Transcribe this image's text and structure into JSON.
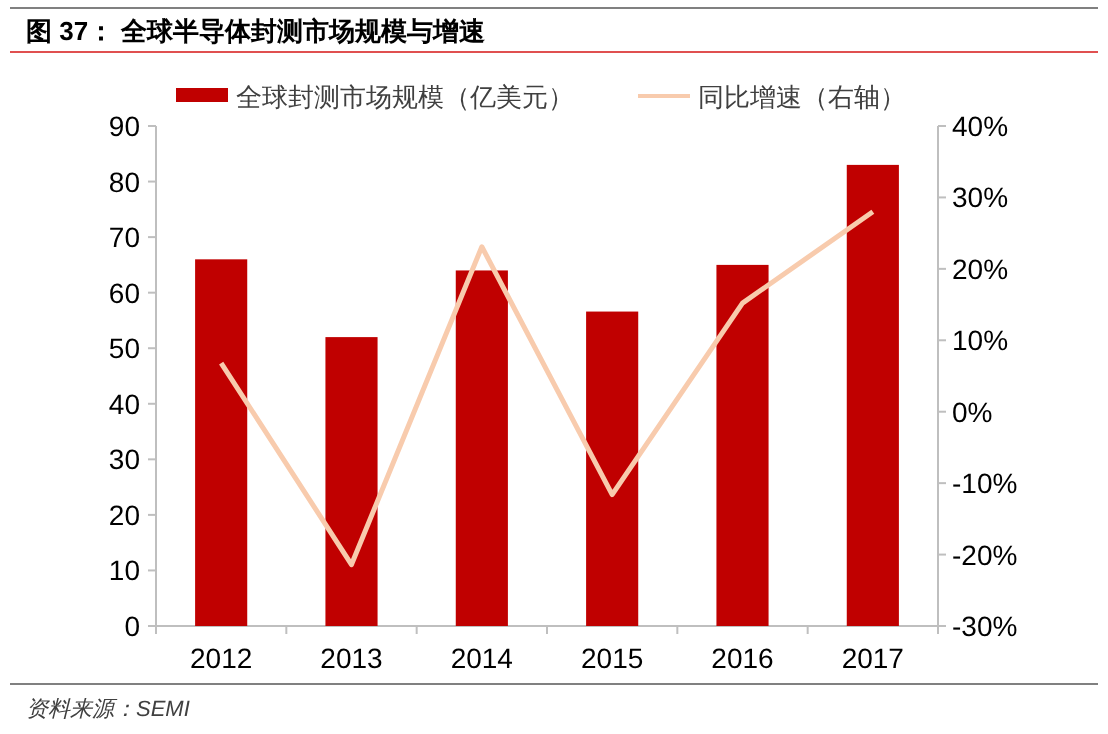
{
  "chart_data": {
    "type": "bar",
    "title": "图 37：  全球半导体封测市场规模与增速",
    "categories": [
      "2012",
      "2013",
      "2014",
      "2015",
      "2016",
      "2017"
    ],
    "series": [
      {
        "name": "全球封测市场规模（亿美元）",
        "color": "#c00000",
        "values": [
          66,
          52,
          64,
          56.6,
          65,
          83
        ]
      },
      {
        "name": "同比增速（右轴）",
        "type": "line",
        "axis": "y2",
        "color": "#f8cbad",
        "values": [
          6.8,
          -21.4,
          23.1,
          -11.6,
          15.2,
          28
        ]
      }
    ],
    "ylim": [
      0,
      90
    ],
    "yticks": [
      0,
      10,
      20,
      30,
      40,
      50,
      60,
      70,
      80,
      90
    ],
    "y2lim": [
      -30,
      40
    ],
    "y2ticks": [
      {
        "value": -30,
        "label": "-30%"
      },
      {
        "value": -20,
        "label": "-20%"
      },
      {
        "value": -10,
        "label": "-10%"
      },
      {
        "value": 0,
        "label": "0%"
      },
      {
        "value": 10,
        "label": "10%"
      },
      {
        "value": 20,
        "label": "20%"
      },
      {
        "value": 30,
        "label": "30%"
      },
      {
        "value": 40,
        "label": "40%"
      }
    ],
    "grid": false,
    "legend": "top",
    "marker": "none",
    "annotations": [
      "资料来源：SEMI"
    ]
  }
}
